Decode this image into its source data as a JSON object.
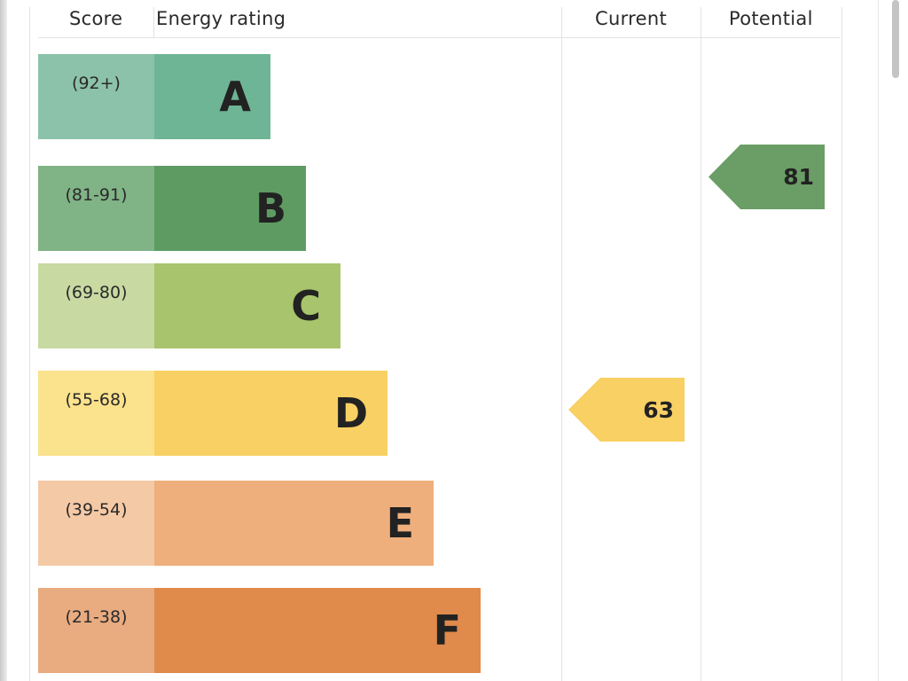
{
  "headers": {
    "score": "Score",
    "rating": "Energy rating",
    "current": "Current",
    "potential": "Potential"
  },
  "chart_data": {
    "type": "bar",
    "categories": [
      "A",
      "B",
      "C",
      "D",
      "E",
      "F"
    ],
    "score_ranges": [
      "(92+)",
      "(81-91)",
      "(69-80)",
      "(55-68)",
      "(39-54)",
      "(21-38)"
    ],
    "colors": [
      "#6eb595",
      "#5e9b62",
      "#a8c46c",
      "#f8d063",
      "#efaf7c",
      "#e08a4c"
    ],
    "score_colors": [
      "#8cc2a9",
      "#80b386",
      "#c8d9a2",
      "#fbe28c",
      "#f4c9a5",
      "#e9ab80"
    ],
    "current": {
      "value": 63,
      "band": "D",
      "color": "#f8d063"
    },
    "potential": {
      "value": 81,
      "band": "B",
      "color": "#6a9e66"
    }
  }
}
